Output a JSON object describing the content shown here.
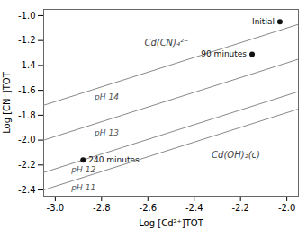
{
  "chart_data": {
    "type": "line",
    "xlabel": "Log [Cd²⁺]TOT",
    "ylabel": "Log [CN⁻]TOT",
    "xlim": [
      -3.05,
      -1.95
    ],
    "ylim": [
      -2.45,
      -0.95
    ],
    "xticks": [
      {
        "value": -3.0,
        "label": "-3.0"
      },
      {
        "value": -2.8,
        "label": "-2.8"
      },
      {
        "value": -2.6,
        "label": "-2.6"
      },
      {
        "value": -2.4,
        "label": "-2.4"
      },
      {
        "value": -2.2,
        "label": "-2.2"
      },
      {
        "value": -2.0,
        "label": "-2.0"
      }
    ],
    "yticks": [
      {
        "value": -1.0,
        "label": "-1.0"
      },
      {
        "value": -1.2,
        "label": "-1.2"
      },
      {
        "value": -1.4,
        "label": "-1.4"
      },
      {
        "value": -1.6,
        "label": "-1.6"
      },
      {
        "value": -1.8,
        "label": "-1.8"
      },
      {
        "value": -2.0,
        "label": "-2.0"
      },
      {
        "value": -2.2,
        "label": "-2.2"
      },
      {
        "value": -2.4,
        "label": "-2.4"
      }
    ],
    "series": [
      {
        "name": "pH 14",
        "color": "#888888",
        "x": [
          -3.05,
          -1.95
        ],
        "values": [
          -1.72,
          -1.07
        ],
        "label_x": -2.83,
        "label_y": -1.63
      },
      {
        "name": "pH 13",
        "color": "#888888",
        "x": [
          -3.05,
          -1.95
        ],
        "values": [
          -2.0,
          -1.35
        ],
        "label_x": -2.83,
        "label_y": -1.92
      },
      {
        "name": "pH 12",
        "color": "#888888",
        "x": [
          -3.05,
          -1.95
        ],
        "values": [
          -2.26,
          -1.61
        ],
        "label_x": -2.93,
        "label_y": -2.21
      },
      {
        "name": "pH 11",
        "color": "#888888",
        "x": [
          -3.05,
          -1.95
        ],
        "values": [
          -2.4,
          -1.75
        ],
        "label_x": -2.93,
        "label_y": -2.36
      }
    ],
    "points": [
      {
        "label": "Initial",
        "x": -2.03,
        "y": -1.05,
        "label_side": "left"
      },
      {
        "label": "90 minutes",
        "x": -2.15,
        "y": -1.31,
        "label_side": "left"
      },
      {
        "label": "240 minutes",
        "x": -2.88,
        "y": -2.16,
        "label_side": "right"
      }
    ],
    "points_color": "#111111",
    "annotations": [
      {
        "text": "Cd(CN)₄²⁻",
        "x": -2.52,
        "y": -1.22
      },
      {
        "text": "Cd(OH)₂(c)",
        "x": -2.22,
        "y": -2.12
      }
    ]
  }
}
